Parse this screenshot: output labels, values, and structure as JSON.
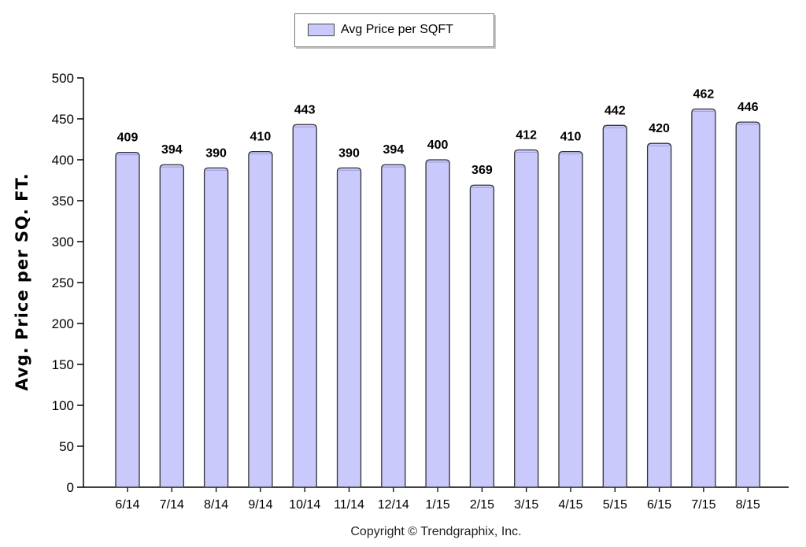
{
  "chart_data": {
    "type": "bar",
    "categories": [
      "6/14",
      "7/14",
      "8/14",
      "9/14",
      "10/14",
      "11/14",
      "12/14",
      "1/15",
      "2/15",
      "3/15",
      "4/15",
      "5/15",
      "6/15",
      "7/15",
      "8/15"
    ],
    "series": [
      {
        "name": "Avg Price per SQFT",
        "values": [
          409,
          394,
          390,
          410,
          443,
          390,
          394,
          400,
          369,
          412,
          410,
          442,
          420,
          462,
          446
        ]
      }
    ],
    "ylabel": "Avg. Price per SQ. FT.",
    "xlabel": "",
    "ylim": [
      0,
      500
    ],
    "yticks": [
      0,
      50,
      100,
      150,
      200,
      250,
      300,
      350,
      400,
      450,
      500
    ],
    "grid": false,
    "legend_position": "top-center",
    "data_labels": true,
    "bar_color": "#c9c9fb",
    "bar_edge_color": "#333333"
  },
  "legend": {
    "label": "Avg Price per SQFT"
  },
  "axis": {
    "ylabel": "Avg. Price per SQ. FT."
  },
  "footer": {
    "copyright": "Copyright © Trendgraphix, Inc."
  }
}
